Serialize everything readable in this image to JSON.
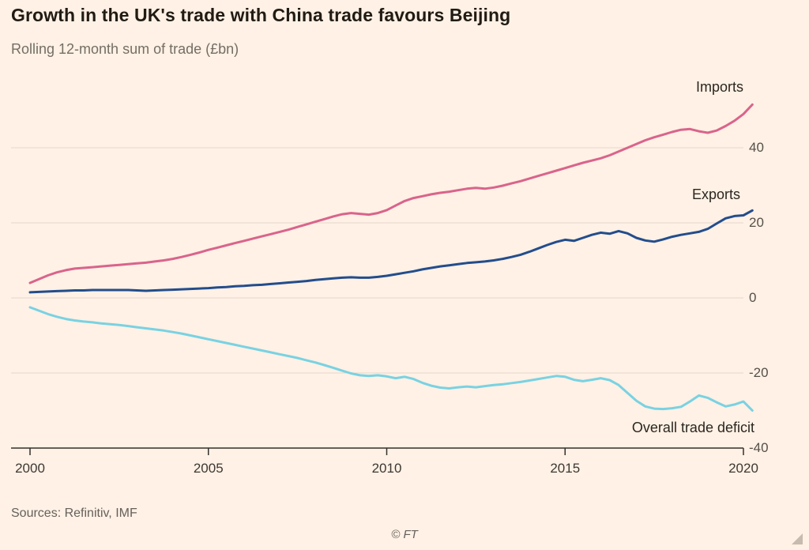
{
  "page": {
    "title": "Growth in the UK's trade with China trade favours Beijing",
    "subtitle": "Rolling 12-month sum of trade (£bn)",
    "source": "Sources: Refinitiv, IMF",
    "copyright": "© FT",
    "background_color": "#FFF1E5"
  },
  "colors": {
    "imports_line": "#d9648c",
    "exports_line": "#234d8c",
    "deficit_line": "#79d2e2",
    "gridline": "#e6d8ca",
    "axis_line": "#33302c",
    "title_text": "#211b14",
    "subtitle_text": "#756e64",
    "tick_text": "#55504a"
  },
  "chart_data": {
    "type": "line",
    "title": "Growth in the UK's trade with China trade favours Beijing",
    "subtitle": "Rolling 12-month sum of trade (£bn)",
    "xlabel": "",
    "ylabel": "£bn",
    "xlim": [
      2000,
      2020.4
    ],
    "ylim": [
      -40,
      55
    ],
    "xticks": [
      2000,
      2005,
      2010,
      2015,
      2020
    ],
    "yticks": [
      40,
      20,
      0,
      -20,
      -40
    ],
    "grid": "horizontal",
    "legend_position": "inline-labels",
    "x": [
      2000,
      2000.25,
      2000.5,
      2000.75,
      2001,
      2001.25,
      2001.5,
      2001.75,
      2002,
      2002.25,
      2002.5,
      2002.75,
      2003,
      2003.25,
      2003.5,
      2003.75,
      2004,
      2004.25,
      2004.5,
      2004.75,
      2005,
      2005.25,
      2005.5,
      2005.75,
      2006,
      2006.25,
      2006.5,
      2006.75,
      2007,
      2007.25,
      2007.5,
      2007.75,
      2008,
      2008.25,
      2008.5,
      2008.75,
      2009,
      2009.25,
      2009.5,
      2009.75,
      2010,
      2010.25,
      2010.5,
      2010.75,
      2011,
      2011.25,
      2011.5,
      2011.75,
      2012,
      2012.25,
      2012.5,
      2012.75,
      2013,
      2013.25,
      2013.5,
      2013.75,
      2014,
      2014.25,
      2014.5,
      2014.75,
      2015,
      2015.25,
      2015.5,
      2015.75,
      2016,
      2016.25,
      2016.5,
      2016.75,
      2017,
      2017.25,
      2017.5,
      2017.75,
      2018,
      2018.25,
      2018.5,
      2018.75,
      2019,
      2019.25,
      2019.5,
      2019.75,
      2020,
      2020.25
    ],
    "series": [
      {
        "name": "Imports",
        "color": "#d9648c",
        "values": [
          4.0,
          5.0,
          6.0,
          6.8,
          7.4,
          7.8,
          8.0,
          8.2,
          8.4,
          8.6,
          8.8,
          9.0,
          9.2,
          9.4,
          9.7,
          10.0,
          10.4,
          10.9,
          11.5,
          12.1,
          12.8,
          13.4,
          14.0,
          14.6,
          15.2,
          15.8,
          16.4,
          17.0,
          17.6,
          18.2,
          18.9,
          19.6,
          20.3,
          21.0,
          21.7,
          22.3,
          22.6,
          22.4,
          22.2,
          22.6,
          23.4,
          24.6,
          25.8,
          26.6,
          27.1,
          27.6,
          28.0,
          28.3,
          28.7,
          29.1,
          29.3,
          29.1,
          29.4,
          29.9,
          30.5,
          31.1,
          31.8,
          32.5,
          33.2,
          33.9,
          34.6,
          35.3,
          36.0,
          36.6,
          37.2,
          38.0,
          39.0,
          40.0,
          41.0,
          42.0,
          42.8,
          43.5,
          44.2,
          44.8,
          45.0,
          44.4,
          44.0,
          44.6,
          45.8,
          47.2,
          49.0,
          51.5
        ]
      },
      {
        "name": "Exports",
        "color": "#234d8c",
        "values": [
          1.5,
          1.6,
          1.7,
          1.8,
          1.9,
          2.0,
          2.0,
          2.1,
          2.1,
          2.1,
          2.1,
          2.1,
          2.0,
          1.9,
          2.0,
          2.1,
          2.2,
          2.3,
          2.4,
          2.5,
          2.6,
          2.8,
          2.9,
          3.1,
          3.2,
          3.4,
          3.5,
          3.7,
          3.9,
          4.1,
          4.3,
          4.5,
          4.8,
          5.0,
          5.2,
          5.4,
          5.5,
          5.4,
          5.4,
          5.6,
          5.9,
          6.3,
          6.7,
          7.1,
          7.6,
          8.0,
          8.4,
          8.7,
          9.0,
          9.3,
          9.5,
          9.7,
          10.0,
          10.4,
          10.9,
          11.5,
          12.3,
          13.2,
          14.1,
          14.9,
          15.5,
          15.2,
          16.0,
          16.8,
          17.4,
          17.1,
          17.8,
          17.2,
          16.0,
          15.3,
          15.0,
          15.6,
          16.3,
          16.8,
          17.2,
          17.6,
          18.4,
          19.8,
          21.2,
          21.8,
          22.0,
          23.3
        ]
      },
      {
        "name": "Overall trade deficit",
        "color": "#79d2e2",
        "values": [
          -2.5,
          -3.4,
          -4.3,
          -5.0,
          -5.6,
          -6.0,
          -6.3,
          -6.5,
          -6.8,
          -7.0,
          -7.2,
          -7.5,
          -7.8,
          -8.1,
          -8.4,
          -8.7,
          -9.1,
          -9.5,
          -10.0,
          -10.5,
          -11.0,
          -11.5,
          -12.0,
          -12.5,
          -13.0,
          -13.5,
          -14.0,
          -14.5,
          -15.0,
          -15.5,
          -16.0,
          -16.6,
          -17.2,
          -17.9,
          -18.6,
          -19.4,
          -20.1,
          -20.6,
          -20.8,
          -20.6,
          -20.9,
          -21.4,
          -21.0,
          -21.6,
          -22.6,
          -23.4,
          -23.9,
          -24.1,
          -23.8,
          -23.6,
          -23.8,
          -23.5,
          -23.2,
          -23.0,
          -22.7,
          -22.4,
          -22.0,
          -21.6,
          -21.2,
          -20.8,
          -21.0,
          -21.8,
          -22.2,
          -21.8,
          -21.4,
          -21.9,
          -23.2,
          -25.3,
          -27.4,
          -28.9,
          -29.5,
          -29.6,
          -29.4,
          -29.0,
          -27.6,
          -26.0,
          -26.6,
          -27.8,
          -28.9,
          -28.4,
          -27.6,
          -30.0
        ]
      }
    ]
  }
}
